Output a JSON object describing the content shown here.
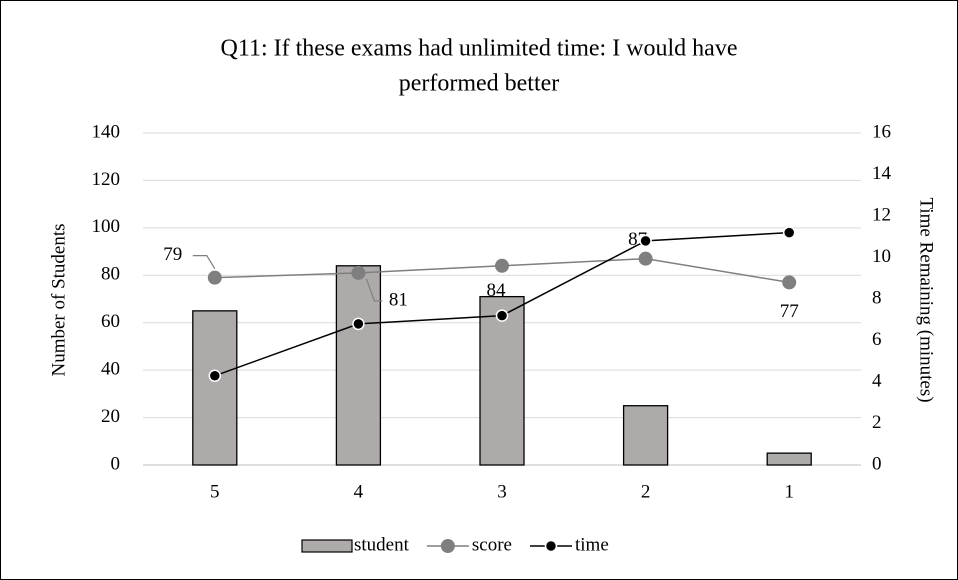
{
  "chart_data": {
    "type": "bar",
    "title": [
      "Q11: If these exams had unlimited time: I would have",
      "performed better"
    ],
    "categories": [
      "5",
      "4",
      "3",
      "2",
      "1"
    ],
    "ylabel": "Number of Students",
    "y2label": "Time Remaining (minutes)",
    "ylim": [
      0,
      140
    ],
    "yticks": [
      0,
      20,
      40,
      60,
      80,
      100,
      120,
      140
    ],
    "y2lim": [
      0,
      16
    ],
    "y2ticks": [
      0,
      2,
      4,
      6,
      8,
      10,
      12,
      14,
      16
    ],
    "grid": true,
    "legend": "bottom",
    "series": [
      {
        "name": "student",
        "type": "bar",
        "color": "#aeaaaa",
        "values": [
          65,
          84,
          71,
          25,
          5
        ]
      },
      {
        "name": "score",
        "type": "line",
        "color": "#7f7f7f",
        "values": [
          79,
          81,
          84,
          87,
          77
        ],
        "data_labels": true
      },
      {
        "name": "time",
        "type": "line",
        "color": "#000000",
        "axis": "y2",
        "values": [
          4.3,
          6.8,
          7.2,
          10.8,
          11.2
        ]
      }
    ]
  }
}
